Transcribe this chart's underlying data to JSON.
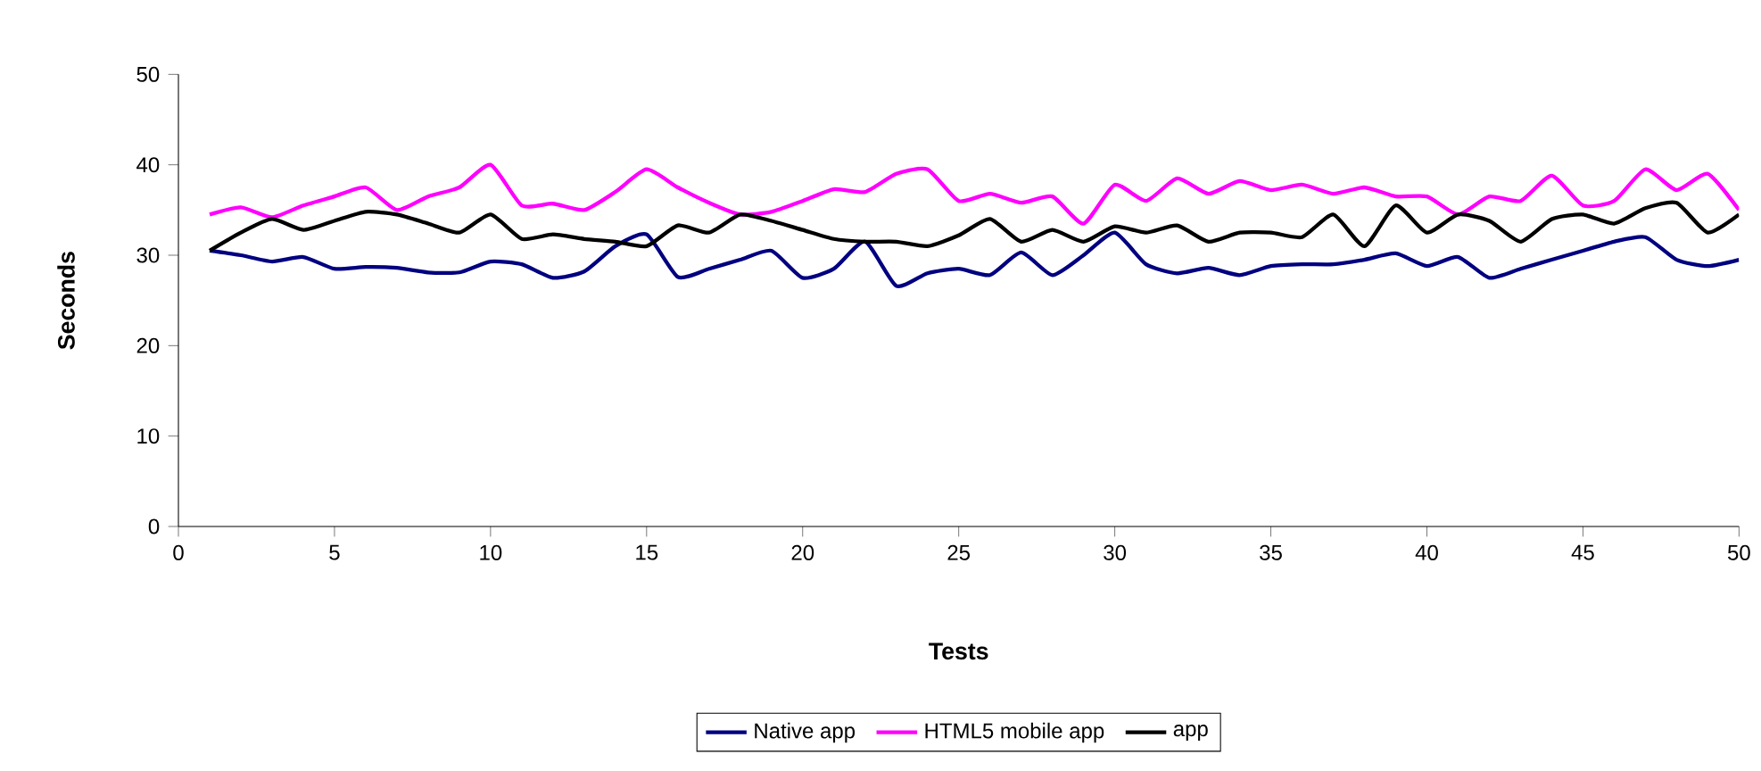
{
  "chart_data": {
    "type": "line",
    "xlabel": "Tests",
    "ylabel": "Seconds",
    "x": [
      1,
      2,
      3,
      4,
      5,
      6,
      7,
      8,
      9,
      10,
      11,
      12,
      13,
      14,
      15,
      16,
      17,
      18,
      19,
      20,
      21,
      22,
      23,
      24,
      25,
      26,
      27,
      28,
      29,
      30,
      31,
      32,
      33,
      34,
      35,
      36,
      37,
      38,
      39,
      40,
      41,
      42,
      43,
      44,
      45,
      46,
      47,
      48,
      49,
      50
    ],
    "series": [
      {
        "name": "Native app",
        "color": "#000080",
        "values": [
          30.5,
          30,
          29.3,
          29.8,
          28.5,
          28.7,
          28.6,
          28.1,
          28.1,
          29.3,
          29,
          27.5,
          28.2,
          31,
          32.3,
          27.6,
          28.5,
          29.5,
          30.5,
          27.5,
          28.5,
          31.5,
          26.6,
          28,
          28.5,
          27.8,
          30.3,
          27.8,
          30,
          32.5,
          29,
          28,
          28.6,
          27.8,
          28.8,
          29,
          29,
          29.5,
          30.2,
          28.8,
          29.8,
          27.5,
          28.5,
          29.5,
          30.5,
          31.5,
          32,
          29.5,
          28.8,
          29.5
        ]
      },
      {
        "name": "HTML5 mobile app",
        "color": "#ff00ff",
        "values": [
          34.5,
          35.3,
          34.2,
          35.5,
          36.5,
          37.5,
          35,
          36.5,
          37.5,
          40,
          35.5,
          35.7,
          35,
          37,
          39.5,
          37.5,
          35.8,
          34.5,
          34.8,
          36,
          37.3,
          37,
          39,
          39.5,
          36,
          36.8,
          35.8,
          36.5,
          33.5,
          37.8,
          36,
          38.5,
          36.8,
          38.2,
          37.2,
          37.8,
          36.8,
          37.5,
          36.5,
          36.5,
          34.5,
          36.5,
          36,
          38.8,
          35.5,
          36,
          39.5,
          37.2,
          39,
          35
        ]
      },
      {
        "name": "app",
        "color": "#000000",
        "values": [
          30.5,
          32.5,
          34,
          32.8,
          33.8,
          34.8,
          34.5,
          33.5,
          32.5,
          34.5,
          31.8,
          32.3,
          31.8,
          31.5,
          31,
          33.3,
          32.5,
          34.5,
          33.8,
          32.8,
          31.8,
          31.5,
          31.5,
          31,
          32.2,
          34,
          31.5,
          32.8,
          31.5,
          33.2,
          32.5,
          33.3,
          31.5,
          32.5,
          32.5,
          32,
          34.5,
          31,
          35.5,
          32.5,
          34.5,
          33.8,
          31.5,
          34,
          34.5,
          33.5,
          35.2,
          35.8,
          32.5,
          34.5
        ]
      }
    ],
    "xlim": [
      0,
      50
    ],
    "xticks": [
      0,
      5,
      10,
      15,
      20,
      25,
      30,
      35,
      40,
      45,
      50
    ],
    "ylim": [
      0,
      50
    ],
    "yticks": [
      0,
      10,
      20,
      30,
      40,
      50
    ],
    "grid": false,
    "legend": "bottom"
  }
}
